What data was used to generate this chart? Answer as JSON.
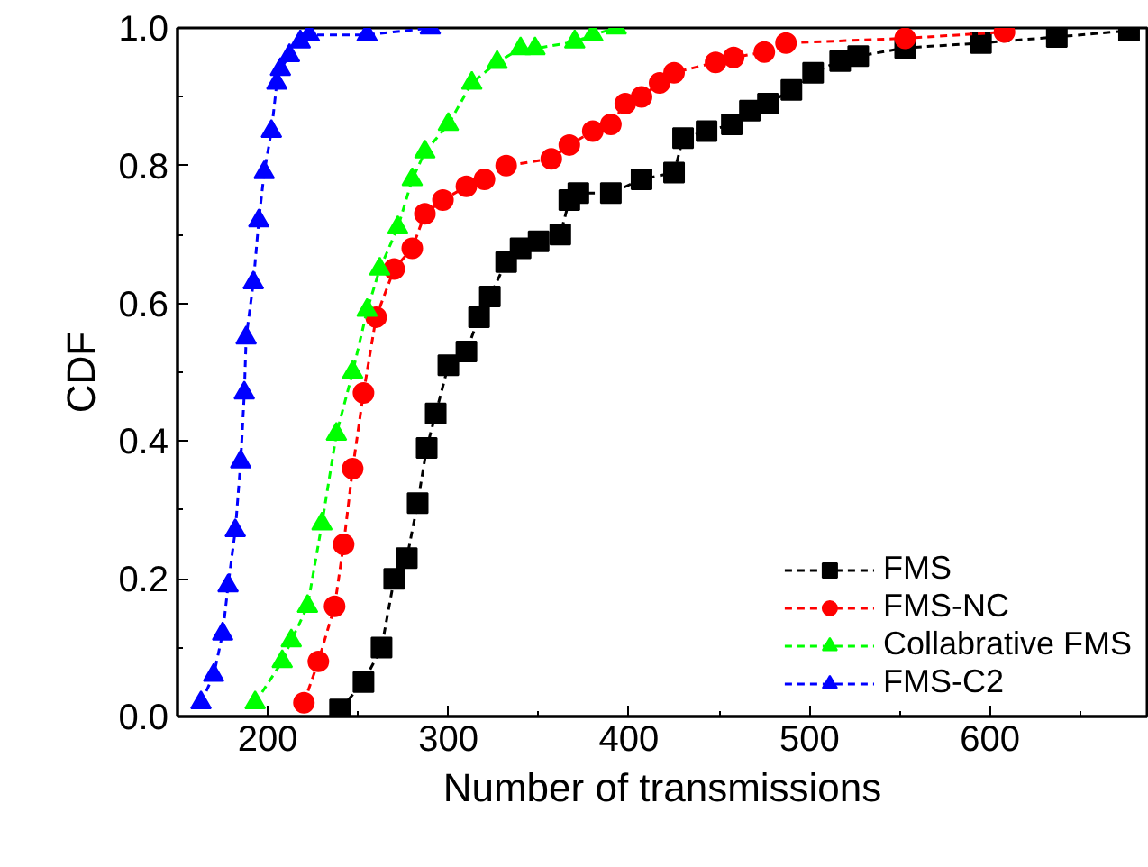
{
  "chart_data": {
    "type": "line",
    "xlabel": "Number of transmissions",
    "ylabel": "CDF",
    "xlim": [
      150,
      687
    ],
    "ylim": [
      0,
      1
    ],
    "xticks": [
      200,
      300,
      400,
      500,
      600
    ],
    "yticks": [
      {
        "value": 0,
        "label": "0.0"
      },
      {
        "value": 0.2,
        "label": "0.2"
      },
      {
        "value": 0.4,
        "label": "0.4"
      },
      {
        "value": 0.6,
        "label": "0.6"
      },
      {
        "value": 0.8,
        "label": "0.8"
      },
      {
        "value": 1,
        "label": "1.0"
      }
    ],
    "grid": false,
    "legend": "bottom right",
    "line_style": "dashed",
    "series": [
      {
        "name": "FMS",
        "color": "#000000",
        "marker": "square",
        "x": [
          240,
          253,
          263,
          270,
          277,
          283,
          288,
          293,
          300,
          310,
          317,
          323,
          332,
          340,
          350,
          362,
          367,
          372,
          390,
          407,
          425,
          430,
          443,
          457,
          467,
          477,
          490,
          502,
          517,
          527,
          553,
          595,
          637,
          677
        ],
        "values": [
          0.01,
          0.05,
          0.1,
          0.2,
          0.23,
          0.31,
          0.39,
          0.44,
          0.51,
          0.53,
          0.58,
          0.61,
          0.66,
          0.68,
          0.69,
          0.7,
          0.75,
          0.76,
          0.76,
          0.78,
          0.79,
          0.84,
          0.85,
          0.86,
          0.88,
          0.89,
          0.91,
          0.935,
          0.952,
          0.959,
          0.971,
          0.978,
          0.987,
          0.996
        ]
      },
      {
        "name": "FMS-NC",
        "color": "#ff0000",
        "marker": "circle",
        "x": [
          220,
          228,
          237,
          242,
          247,
          253,
          260,
          270,
          280,
          287,
          297,
          310,
          320,
          332,
          357,
          367,
          380,
          390,
          398,
          407,
          417,
          425,
          448,
          458,
          475,
          487,
          553,
          608
        ],
        "values": [
          0.02,
          0.08,
          0.16,
          0.25,
          0.36,
          0.47,
          0.58,
          0.65,
          0.68,
          0.73,
          0.75,
          0.77,
          0.78,
          0.8,
          0.81,
          0.83,
          0.85,
          0.86,
          0.89,
          0.9,
          0.92,
          0.935,
          0.95,
          0.957,
          0.965,
          0.978,
          0.985,
          0.994
        ]
      },
      {
        "name": "Collabrative FMS",
        "color": "#00ff00",
        "marker": "triangle",
        "x": [
          193,
          208,
          213,
          222,
          230,
          238,
          247,
          255,
          262,
          272,
          280,
          287,
          300,
          313,
          327,
          340,
          348,
          370,
          380,
          393
        ],
        "values": [
          0.02,
          0.08,
          0.11,
          0.16,
          0.28,
          0.41,
          0.5,
          0.59,
          0.65,
          0.71,
          0.78,
          0.82,
          0.86,
          0.92,
          0.95,
          0.97,
          0.97,
          0.98,
          0.99,
          1.0
        ]
      },
      {
        "name": "FMS-C2",
        "color": "#0000ff",
        "marker": "triangle",
        "x": [
          163,
          170,
          175,
          178,
          182,
          185,
          187,
          188,
          192,
          195,
          198,
          202,
          205,
          207,
          212,
          218,
          223,
          255,
          290
        ],
        "values": [
          0.02,
          0.06,
          0.12,
          0.19,
          0.27,
          0.37,
          0.47,
          0.55,
          0.63,
          0.72,
          0.79,
          0.85,
          0.92,
          0.94,
          0.96,
          0.98,
          0.99,
          0.99,
          1.0
        ]
      }
    ]
  }
}
